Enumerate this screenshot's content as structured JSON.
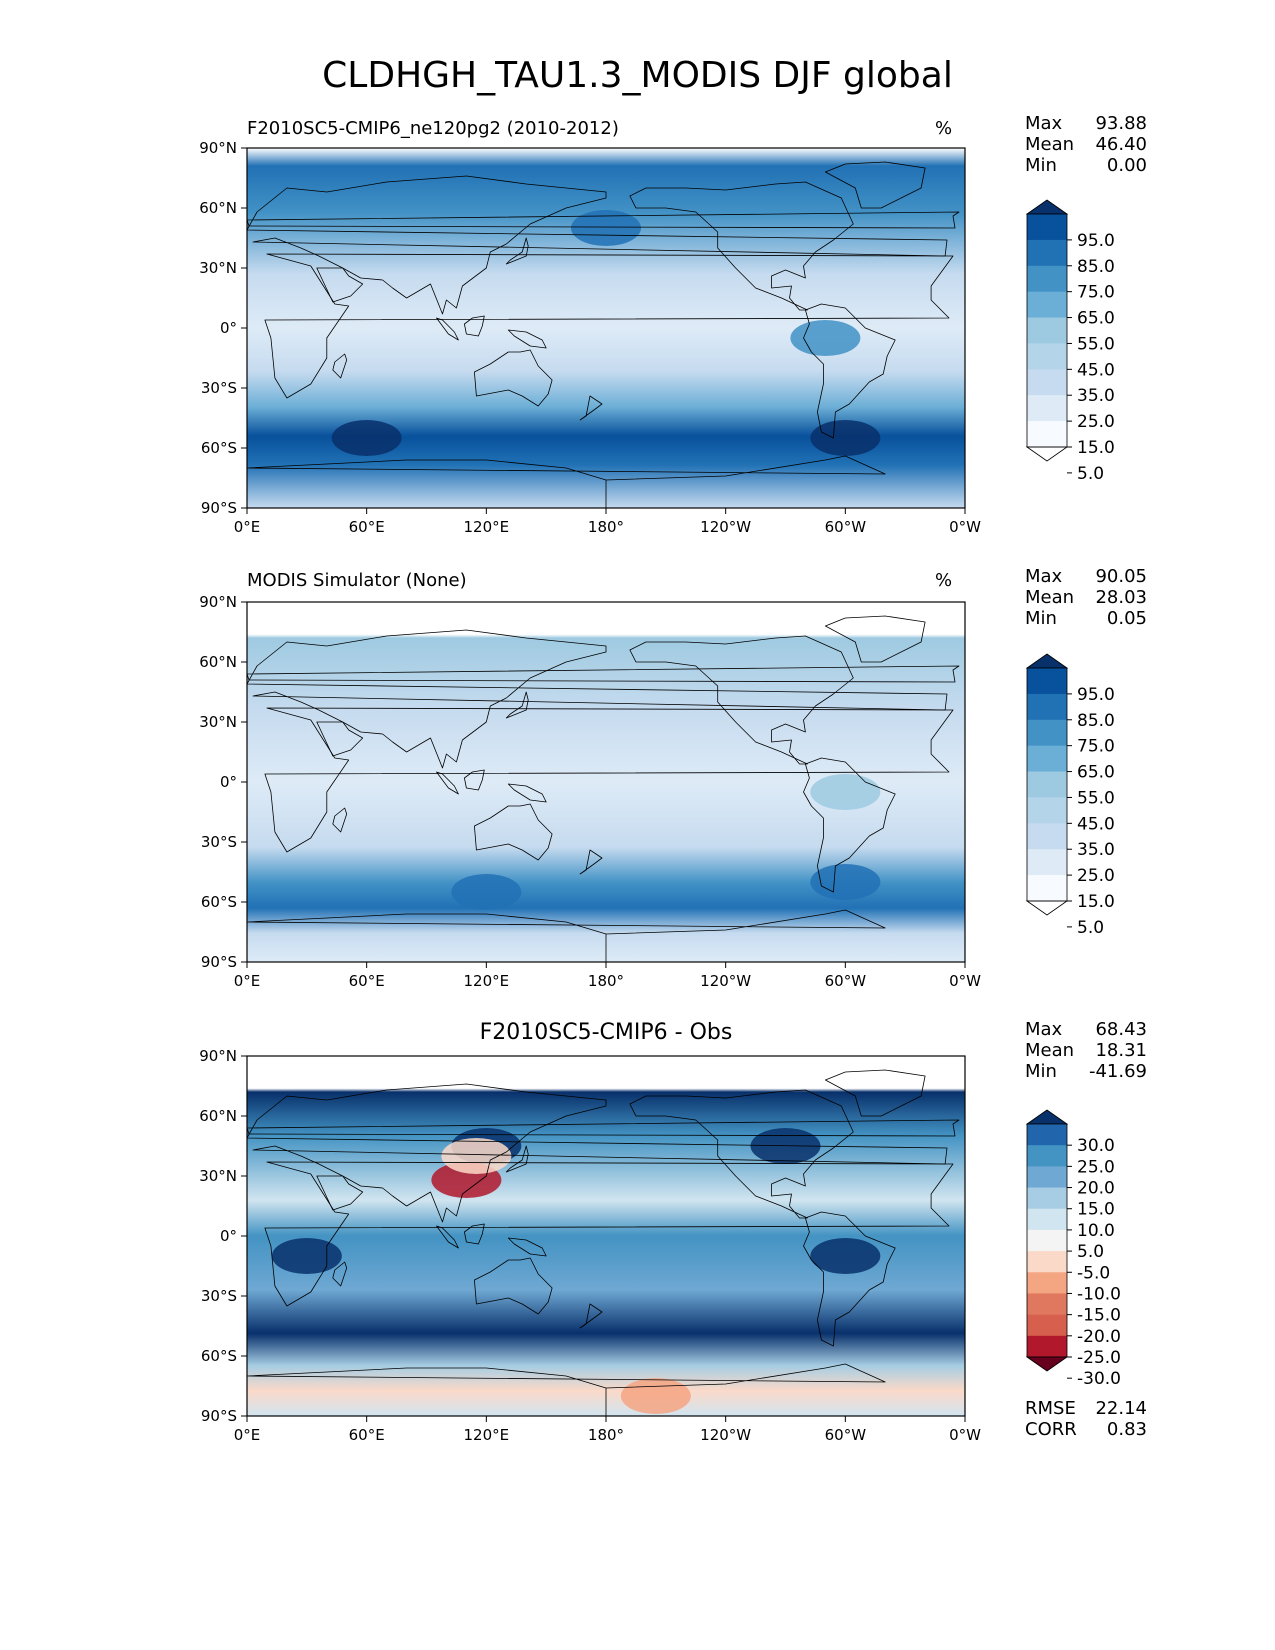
{
  "title": "CLDHGH_TAU1.3_MODIS DJF global",
  "panels": [
    {
      "id": "test",
      "left_title": "F2010SC5-CMIP6_ne120pg2 (2010-2012)",
      "center_title": "",
      "units": "%",
      "stats": [
        {
          "key": "Max",
          "value": "93.88"
        },
        {
          "key": "Mean",
          "value": "46.40"
        },
        {
          "key": "Min",
          "value": "0.00"
        }
      ],
      "colorbar": {
        "labels": [
          "95.0",
          "85.0",
          "75.0",
          "65.0",
          "55.0",
          "45.0",
          "35.0",
          "25.0",
          "15.0",
          "5.0"
        ],
        "colors": [
          "#08306b",
          "#08519c",
          "#2171b5",
          "#4292c6",
          "#6baed6",
          "#9ecae1",
          "#b4d4e9",
          "#c6dbef",
          "#deebf7",
          "#f7fbff",
          "#ffffff"
        ]
      },
      "footer_stats": []
    },
    {
      "id": "ref",
      "left_title": "MODIS Simulator (None)",
      "center_title": "",
      "units": "%",
      "stats": [
        {
          "key": "Max",
          "value": "90.05"
        },
        {
          "key": "Mean",
          "value": "28.03"
        },
        {
          "key": "Min",
          "value": "0.05"
        }
      ],
      "colorbar": {
        "labels": [
          "95.0",
          "85.0",
          "75.0",
          "65.0",
          "55.0",
          "45.0",
          "35.0",
          "25.0",
          "15.0",
          "5.0"
        ],
        "colors": [
          "#08306b",
          "#08519c",
          "#2171b5",
          "#4292c6",
          "#6baed6",
          "#9ecae1",
          "#b4d4e9",
          "#c6dbef",
          "#deebf7",
          "#f7fbff",
          "#ffffff"
        ]
      },
      "footer_stats": []
    },
    {
      "id": "diff",
      "left_title": "",
      "center_title": "F2010SC5-CMIP6 - Obs",
      "units": "",
      "stats": [
        {
          "key": "Max",
          "value": "68.43"
        },
        {
          "key": "Mean",
          "value": "18.31"
        },
        {
          "key": "Min",
          "value": "-41.69"
        }
      ],
      "colorbar": {
        "labels": [
          "30.0",
          "25.0",
          "20.0",
          "15.0",
          "10.0",
          "5.0",
          "-5.0",
          "-10.0",
          "-15.0",
          "-20.0",
          "-25.0",
          "-30.0"
        ],
        "colors": [
          "#08306b",
          "#2166ac",
          "#4393c3",
          "#6fa8d3",
          "#a6cde3",
          "#d1e5f0",
          "#f4f4f4",
          "#fbd9c9",
          "#f4a582",
          "#e0785f",
          "#d6604d",
          "#b2182b",
          "#67001f"
        ]
      },
      "footer_stats": [
        {
          "key": "RMSE",
          "value": "22.14"
        },
        {
          "key": "CORR",
          "value": "0.83"
        }
      ]
    }
  ],
  "axes": {
    "y_ticks": [
      "90°N",
      "60°N",
      "30°N",
      "0°",
      "30°S",
      "60°S",
      "90°S"
    ],
    "x_ticks": [
      "0°E",
      "60°E",
      "120°E",
      "180°",
      "120°W",
      "60°W",
      "0°W"
    ]
  }
}
